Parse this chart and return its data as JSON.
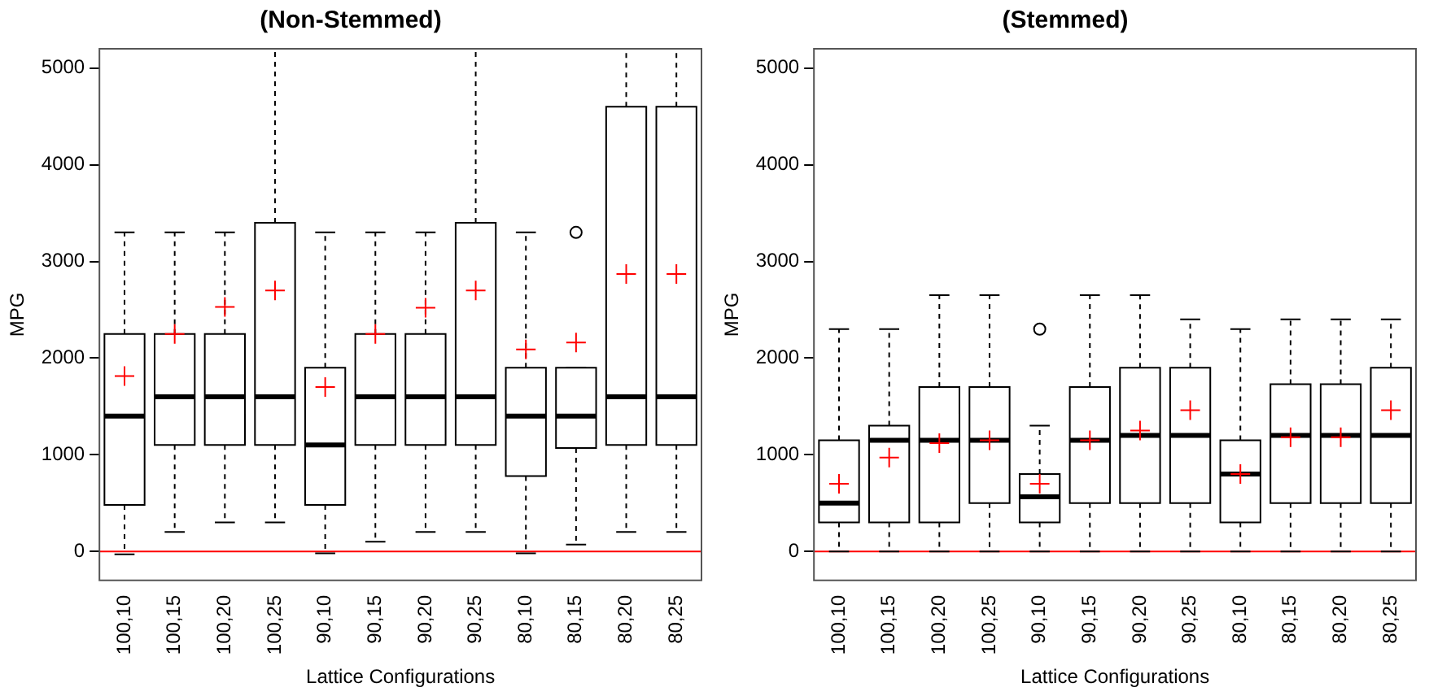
{
  "chart_data": [
    {
      "type": "box",
      "title": "(Non-Stemmed)",
      "xlabel": "Lattice Configurations",
      "ylabel": "MPG",
      "categories": [
        "100,10",
        "100,15",
        "100,20",
        "100,25",
        "90,10",
        "90,15",
        "90,20",
        "90,25",
        "80,10",
        "80,15",
        "80,20",
        "80,25"
      ],
      "ylim": [
        -300,
        5200
      ],
      "yticks": [
        0,
        1000,
        2000,
        3000,
        4000,
        5000
      ],
      "grid": false,
      "legend": false,
      "boxes": [
        {
          "low": -30,
          "q1": 480,
          "median": 1400,
          "q3": 2250,
          "high": 3300,
          "mean": 1815
        },
        {
          "low": 200,
          "q1": 1100,
          "median": 1600,
          "q3": 2250,
          "high": 3300,
          "mean": 2250
        },
        {
          "low": 300,
          "q1": 1100,
          "median": 1600,
          "q3": 2250,
          "high": 3300,
          "mean": 2530
        },
        {
          "low": 300,
          "q1": 1100,
          "median": 1600,
          "q3": 3400,
          "high": 5200,
          "mean": 2700
        },
        {
          "low": -20,
          "q1": 480,
          "median": 1100,
          "q3": 1900,
          "high": 3300,
          "mean": 1700
        },
        {
          "low": 100,
          "q1": 1100,
          "median": 1600,
          "q3": 2250,
          "high": 3300,
          "mean": 2250
        },
        {
          "low": 200,
          "q1": 1100,
          "median": 1600,
          "q3": 2250,
          "high": 3300,
          "mean": 2520
        },
        {
          "low": 200,
          "q1": 1100,
          "median": 1600,
          "q3": 3400,
          "high": 5200,
          "mean": 2700
        },
        {
          "low": -20,
          "q1": 780,
          "median": 1400,
          "q3": 1900,
          "high": 3300,
          "mean": 2090
        },
        {
          "low": 70,
          "q1": 1070,
          "median": 1400,
          "q3": 1900,
          "high": 1900,
          "mean": 2160,
          "outliers": [
            3300
          ]
        },
        {
          "low": 200,
          "q1": 1100,
          "median": 1600,
          "q3": 4600,
          "high": 5200,
          "mean": 2870
        },
        {
          "low": 200,
          "q1": 1100,
          "median": 1600,
          "q3": 4600,
          "high": 5200,
          "mean": 2870
        }
      ],
      "ref_lines": [
        {
          "axis": "y",
          "value": 0,
          "color": "#ff0000"
        }
      ]
    },
    {
      "type": "box",
      "title": "(Stemmed)",
      "xlabel": "Lattice Configurations",
      "ylabel": "MPG",
      "categories": [
        "100,10",
        "100,15",
        "100,20",
        "100,25",
        "90,10",
        "90,15",
        "90,20",
        "90,25",
        "80,10",
        "80,15",
        "80,20",
        "80,25"
      ],
      "ylim": [
        -300,
        5200
      ],
      "yticks": [
        0,
        1000,
        2000,
        3000,
        4000,
        5000
      ],
      "grid": false,
      "legend": false,
      "boxes": [
        {
          "low": 0,
          "q1": 300,
          "median": 500,
          "q3": 1150,
          "high": 2300,
          "mean": 700
        },
        {
          "low": 0,
          "q1": 300,
          "median": 1150,
          "q3": 1300,
          "high": 2300,
          "mean": 970
        },
        {
          "low": 0,
          "q1": 300,
          "median": 1150,
          "q3": 1700,
          "high": 2650,
          "mean": 1120
        },
        {
          "low": 0,
          "q1": 500,
          "median": 1150,
          "q3": 1700,
          "high": 2650,
          "mean": 1150
        },
        {
          "low": 0,
          "q1": 300,
          "median": 565,
          "q3": 800,
          "high": 1300,
          "mean": 700,
          "outliers": [
            2300
          ]
        },
        {
          "low": 0,
          "q1": 500,
          "median": 1150,
          "q3": 1700,
          "high": 2650,
          "mean": 1150
        },
        {
          "low": 0,
          "q1": 500,
          "median": 1200,
          "q3": 1900,
          "high": 2650,
          "mean": 1250
        },
        {
          "low": 0,
          "q1": 500,
          "median": 1200,
          "q3": 1900,
          "high": 2400,
          "mean": 1460
        },
        {
          "low": 0,
          "q1": 300,
          "median": 800,
          "q3": 1150,
          "high": 2300,
          "mean": 800
        },
        {
          "low": 0,
          "q1": 500,
          "median": 1200,
          "q3": 1730,
          "high": 2400,
          "mean": 1180
        },
        {
          "low": 0,
          "q1": 500,
          "median": 1200,
          "q3": 1730,
          "high": 2400,
          "mean": 1180
        },
        {
          "low": 0,
          "q1": 500,
          "median": 1200,
          "q3": 1900,
          "high": 2400,
          "mean": 1460
        }
      ],
      "ref_lines": [
        {
          "axis": "y",
          "value": 0,
          "color": "#ff0000"
        }
      ]
    }
  ]
}
